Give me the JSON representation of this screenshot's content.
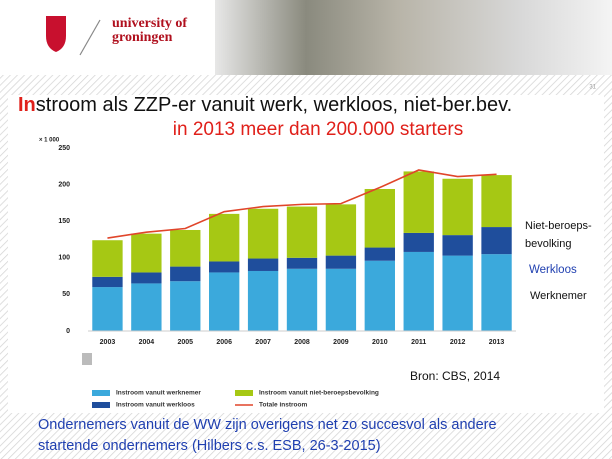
{
  "header": {
    "logo_line1": "university of",
    "logo_line2": "groningen",
    "page_number": "31"
  },
  "slide": {
    "title_prefix": "In",
    "title_rest": "stroom als ZZP-er vanuit werk, werkloos, niet-ber.bev.",
    "subtitle": "in 2013 meer dan 200.000 starters",
    "source": "Bron: CBS, 2014",
    "footer_lines": [
      "Ondernemers vanuit de WW zijn overigens net zo succesvol als andere",
      "startende ondernemers (Hilbers c.s. ESB, 26-3-2015)"
    ]
  },
  "chart_data": {
    "type": "stacked_bar_line",
    "unit_label": "× 1 000",
    "categories": [
      "2003",
      "2004",
      "2005",
      "2006",
      "2007",
      "2008",
      "2009",
      "2010",
      "2011",
      "2012",
      "2013"
    ],
    "ylim": [
      0,
      250
    ],
    "yticks": [
      0,
      50,
      100,
      150,
      200,
      250
    ],
    "grid": false,
    "series": [
      {
        "name": "Instroom vanuit werknemer",
        "color": "#3ba9dc",
        "values": [
          60,
          65,
          68,
          80,
          82,
          85,
          85,
          96,
          108,
          103,
          105
        ]
      },
      {
        "name": "Instroom vanuit werkloos",
        "color": "#1f4e9c",
        "values": [
          14,
          15,
          20,
          15,
          17,
          15,
          18,
          18,
          26,
          28,
          37
        ]
      },
      {
        "name": "Instroom vanuit niet-beroepsbevolking",
        "color": "#a6c814",
        "values": [
          50,
          53,
          50,
          65,
          68,
          70,
          70,
          80,
          84,
          77,
          71
        ]
      },
      {
        "name": "Totale instroom",
        "color": "#e0452a",
        "kind": "line",
        "values": [
          127,
          135,
          140,
          163,
          170,
          173,
          174,
          196,
          220,
          211,
          214
        ]
      }
    ],
    "annotations": {
      "niet_beroeps": [
        "Niet-beroeps-",
        "bevolking"
      ],
      "werkloos": "Werkloos",
      "werknemer": "Werknemer"
    }
  }
}
